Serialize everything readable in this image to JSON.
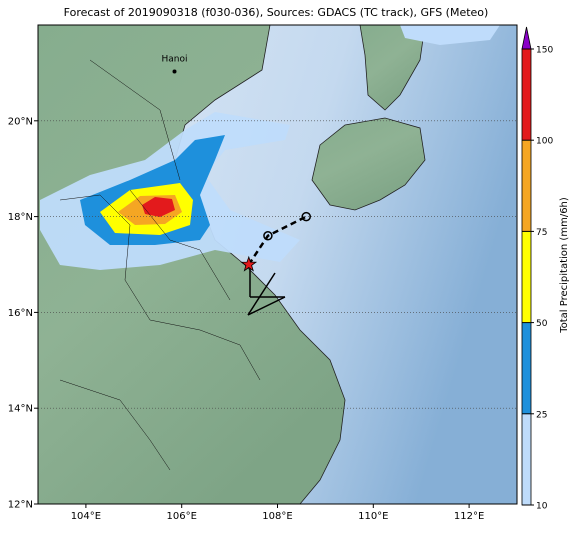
{
  "title": "Forecast of 2019090318 (f030-036), Sources: GDACS (TC track), GFS (Meteo)",
  "map": {
    "xlim": [
      103,
      113
    ],
    "ylim": [
      12,
      22
    ],
    "xticks": [
      {
        "value": 104,
        "label": "104°E"
      },
      {
        "value": 106,
        "label": "106°E"
      },
      {
        "value": 108,
        "label": "108°E"
      },
      {
        "value": 110,
        "label": "110°E"
      },
      {
        "value": 112,
        "label": "112°E"
      }
    ],
    "yticks": [
      {
        "value": 12,
        "label": "12°N"
      },
      {
        "value": 14,
        "label": "14°N"
      },
      {
        "value": 16,
        "label": "16°N"
      },
      {
        "value": 18,
        "label": "18°N"
      },
      {
        "value": 20,
        "label": "20°N"
      }
    ],
    "places": [
      {
        "name": "Hanoi",
        "lon": 105.85,
        "lat": 21.03
      }
    ],
    "track": {
      "lon": [
        107.4,
        107.8,
        108.6
      ],
      "lat": [
        17.0,
        17.6,
        18.0
      ]
    }
  },
  "colorbar": {
    "label": "Total Precipitation (mm/6h)",
    "ticks": [
      10,
      25,
      50,
      75,
      100,
      150
    ],
    "colors": [
      "#bfdcfb",
      "#1e90dc",
      "#ffff00",
      "#f5a623",
      "#e31a1c"
    ],
    "extend_color": "#8a00c8"
  }
}
